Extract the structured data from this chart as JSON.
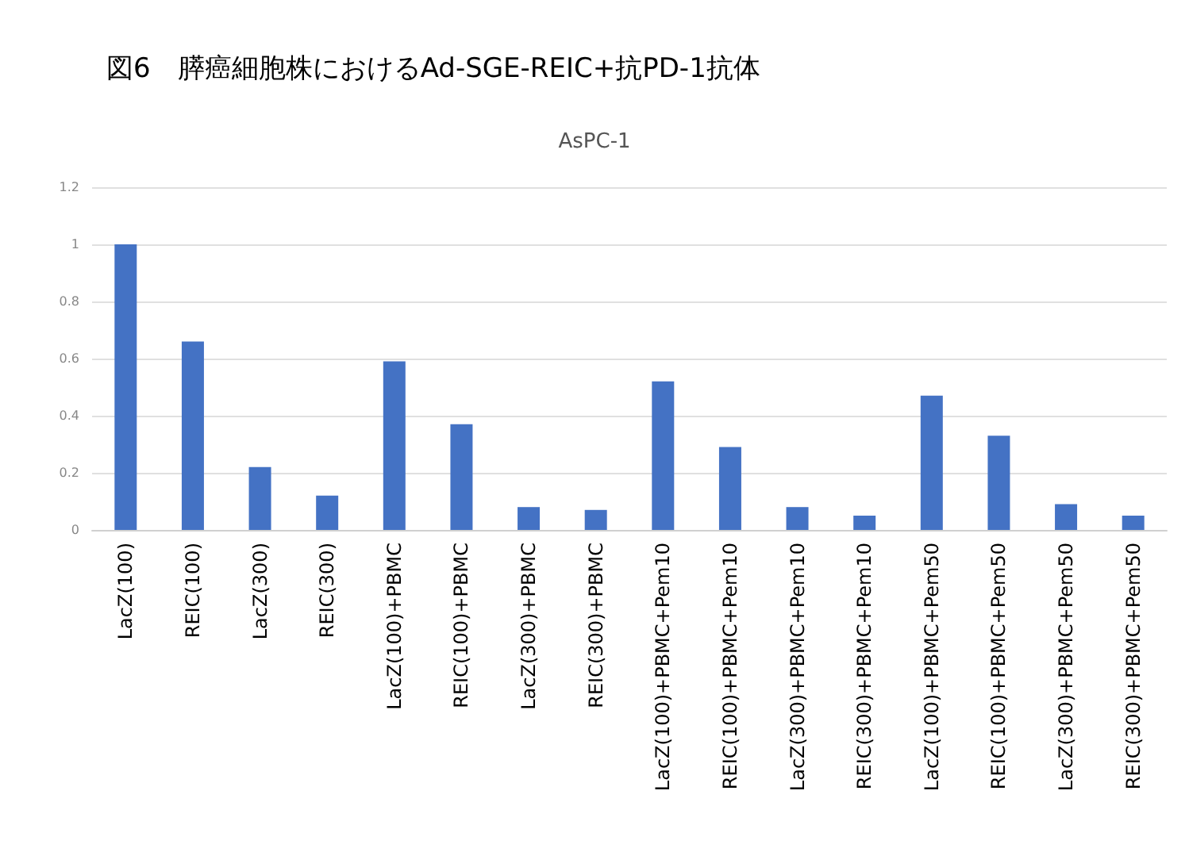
{
  "chart_data": {
    "type": "bar",
    "title": "図6　膵癌細胞株におけるAd-SGE-REIC+抗PD-1抗体",
    "subtitle": "AsPC-1",
    "categories": [
      "LacZ(100)",
      "REIC(100)",
      "LacZ(300)",
      "REIC(300)",
      "LacZ(100)+PBMC",
      "REIC(100)+PBMC",
      "LacZ(300)+PBMC",
      "REIC(300)+PBMC",
      "LacZ(100)+PBMC+Pem10",
      "REIC(100)+PBMC+Pem10",
      "LacZ(300)+PBMC+Pem10",
      "REIC(300)+PBMC+Pem10",
      "LacZ(100)+PBMC+Pem50",
      "REIC(100)+PBMC+Pem50",
      "LacZ(300)+PBMC+Pem50",
      "REIC(300)+PBMC+Pem50"
    ],
    "values": [
      1.0,
      0.66,
      0.22,
      0.12,
      0.59,
      0.37,
      0.08,
      0.07,
      0.52,
      0.29,
      0.08,
      0.05,
      0.47,
      0.33,
      0.09,
      0.05
    ],
    "color": "#4472c4",
    "ylim": [
      0,
      1.2
    ],
    "yticks": [
      0,
      0.2,
      0.4,
      0.6,
      0.8,
      1,
      1.2
    ],
    "grid": "y"
  }
}
